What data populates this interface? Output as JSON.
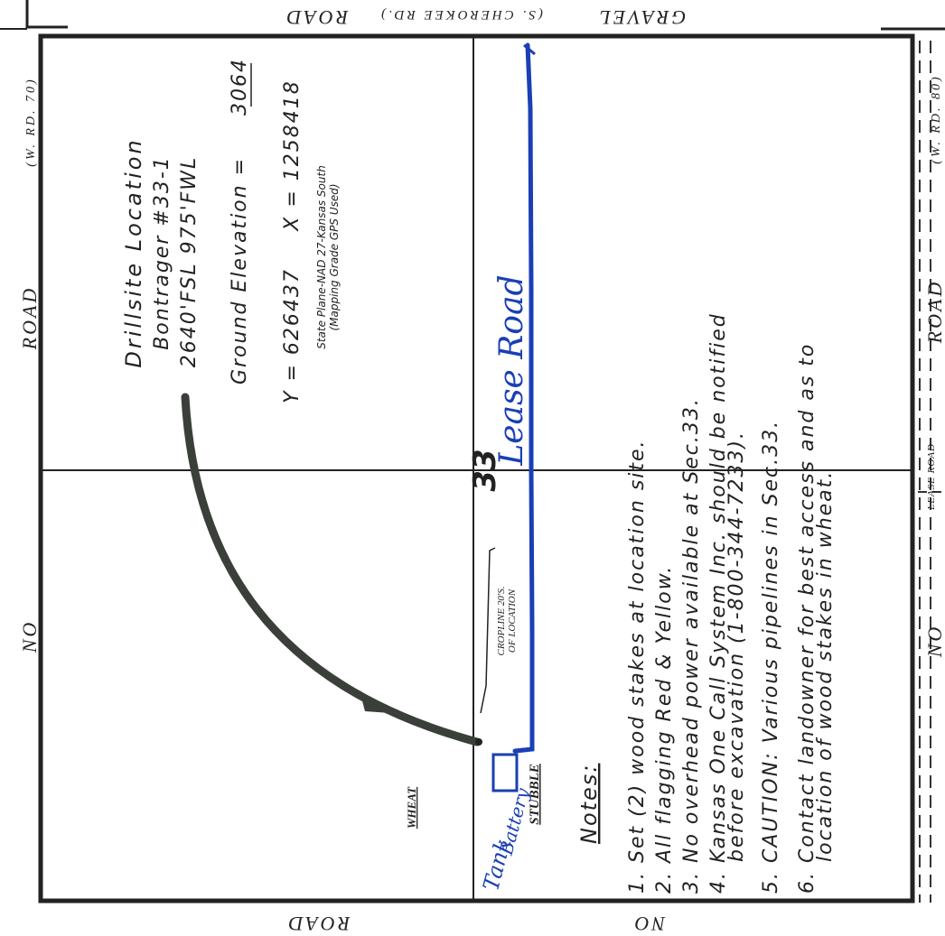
{
  "map": {
    "top_road": {
      "left": "ROAD",
      "center": "(S. CHEROKEE RD.)",
      "right": "GRAVEL"
    },
    "bottom_road": {
      "left": "ROAD",
      "right": "NO"
    },
    "left_road": {
      "top": "(W. RD. 70)",
      "middle": "ROAD",
      "bottom": "NO"
    },
    "right_road": {
      "top": "(W. RD. 80)",
      "middle": "ROAD",
      "lease": "LEASE ROAD",
      "bottom": "NO"
    },
    "location": {
      "title": "Drillsite Location",
      "well": "Bontrager #33-1",
      "footage": "2640'FSL 975'FWL",
      "elevation_label": "Ground Elevation =",
      "elevation_value": "3064",
      "coords_y": "Y = 626437",
      "coords_x": "X = 1258418",
      "plane": "State Plane-NAD 27-Kansas South",
      "gps": "(Mapping Grade GPS Used)"
    },
    "section": "33",
    "lease_road_label": "Lease Road",
    "cropline": {
      "line1": "CROPLINE 20'S.",
      "line2": "OF LOCATION"
    },
    "wheat": "WHEAT",
    "stubble": "STUBBLE",
    "tank_battery": {
      "line1": "Tank",
      "line2": "Battery"
    },
    "colors": {
      "ink": "#222222",
      "blue_ink": "#1a3fb5",
      "arrow": "#3a3f3a"
    }
  },
  "notes": {
    "title": "Notes:",
    "items": [
      "1. Set (2) wood stakes at location site.",
      "2. All flagging Red & Yellow.",
      "3. No overhead power available at Sec.33.",
      "4. Kansas One Call System Inc. should be notified",
      "before excavation (1-800-344-7233).",
      "5. CAUTION: Various pipelines in Sec.33.",
      "6. Contact landowner for best access and as to",
      "location of wood stakes in wheat."
    ]
  }
}
